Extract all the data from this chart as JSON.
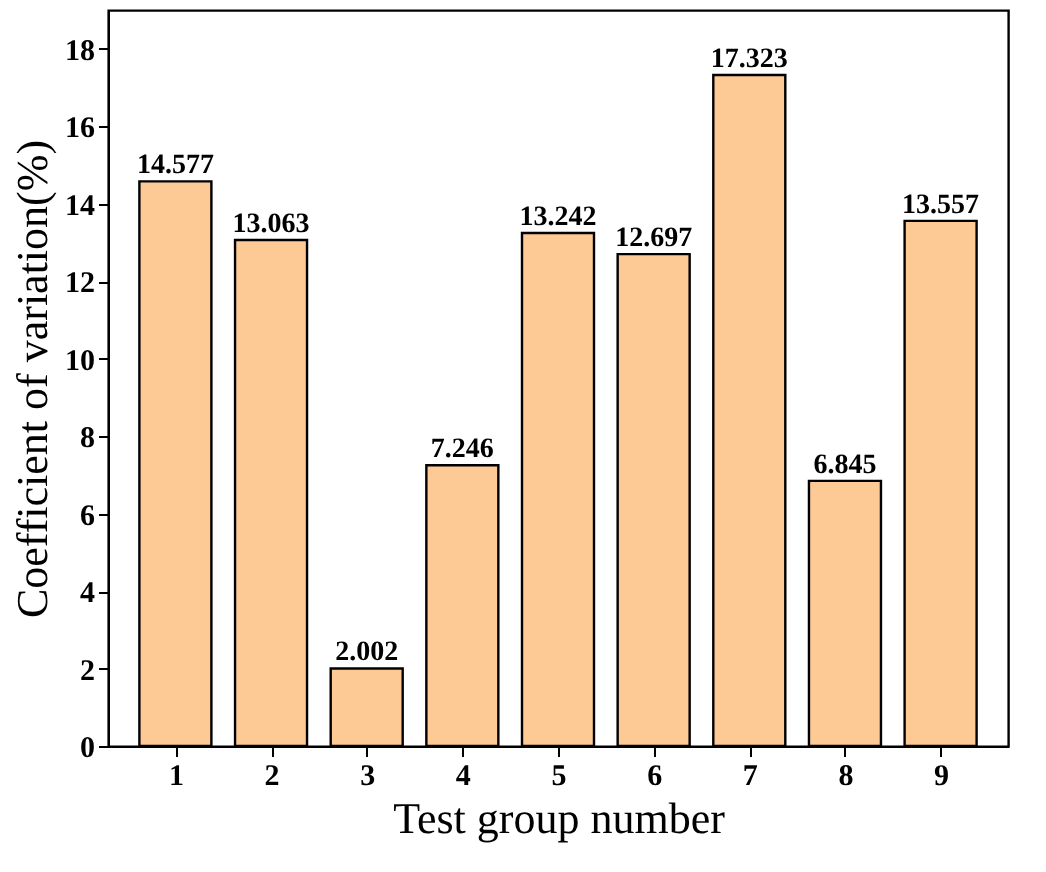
{
  "chart_data": {
    "type": "bar",
    "xlabel": "Test group number",
    "ylabel": "Coefficient of variation(%)",
    "categories": [
      "1",
      "2",
      "3",
      "4",
      "5",
      "6",
      "7",
      "8",
      "9"
    ],
    "values": [
      14.577,
      13.063,
      2.002,
      7.246,
      13.242,
      12.697,
      17.323,
      6.845,
      13.557
    ],
    "color": "#fdca96",
    "ylim": [
      0,
      19
    ],
    "yticks": [
      0,
      2,
      4,
      6,
      8,
      10,
      12,
      14,
      16,
      18
    ],
    "data_labels": true,
    "grid": false
  }
}
